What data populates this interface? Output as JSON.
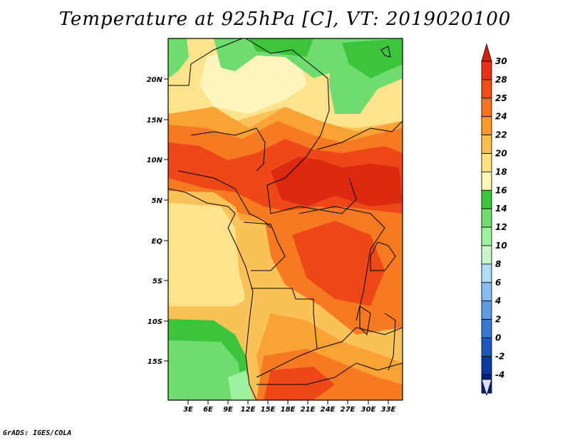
{
  "title": "Temperature at 925hPa [C], VT: 2019020100",
  "credit": "GrADS: IGES/COLA",
  "y_ticks": [
    "20N",
    "15N",
    "10N",
    "5N",
    "EQ",
    "5S",
    "10S",
    "15S"
  ],
  "x_ticks": [
    "3E",
    "6E",
    "9E",
    "12E",
    "15E",
    "18E",
    "21E",
    "24E",
    "27E",
    "30E",
    "33E"
  ],
  "colorbar": {
    "labels": [
      "30",
      "28",
      "25",
      "24",
      "22",
      "20",
      "18",
      "16",
      "14",
      "12",
      "10",
      "8",
      "6",
      "4",
      "2",
      "0",
      "-2",
      "-4"
    ],
    "colors": [
      "#e8301a",
      "#f04d16",
      "#f7731a",
      "#fa9a28",
      "#fbbd4c",
      "#fde080",
      "#fef6b4",
      "#3cc43c",
      "#6edc6e",
      "#9df09d",
      "#c8f5c8",
      "#b0dcf8",
      "#88bcf0",
      "#5e9ae2",
      "#3a78d0",
      "#1e58bc",
      "#0c38a0",
      "#062080"
    ],
    "top_color": "#d81e0c",
    "bottom_color": "#dcdcf4"
  },
  "map_colors": {
    "c30": "#dc2a12",
    "c28": "#ee4818",
    "c25": "#f57a22",
    "c24": "#f9a235",
    "c22": "#fbc25a",
    "c20": "#fde38c",
    "c18": "#fef4be",
    "c16": "#3cc43c",
    "c14": "#6edc6e",
    "c12": "#9df09d"
  }
}
